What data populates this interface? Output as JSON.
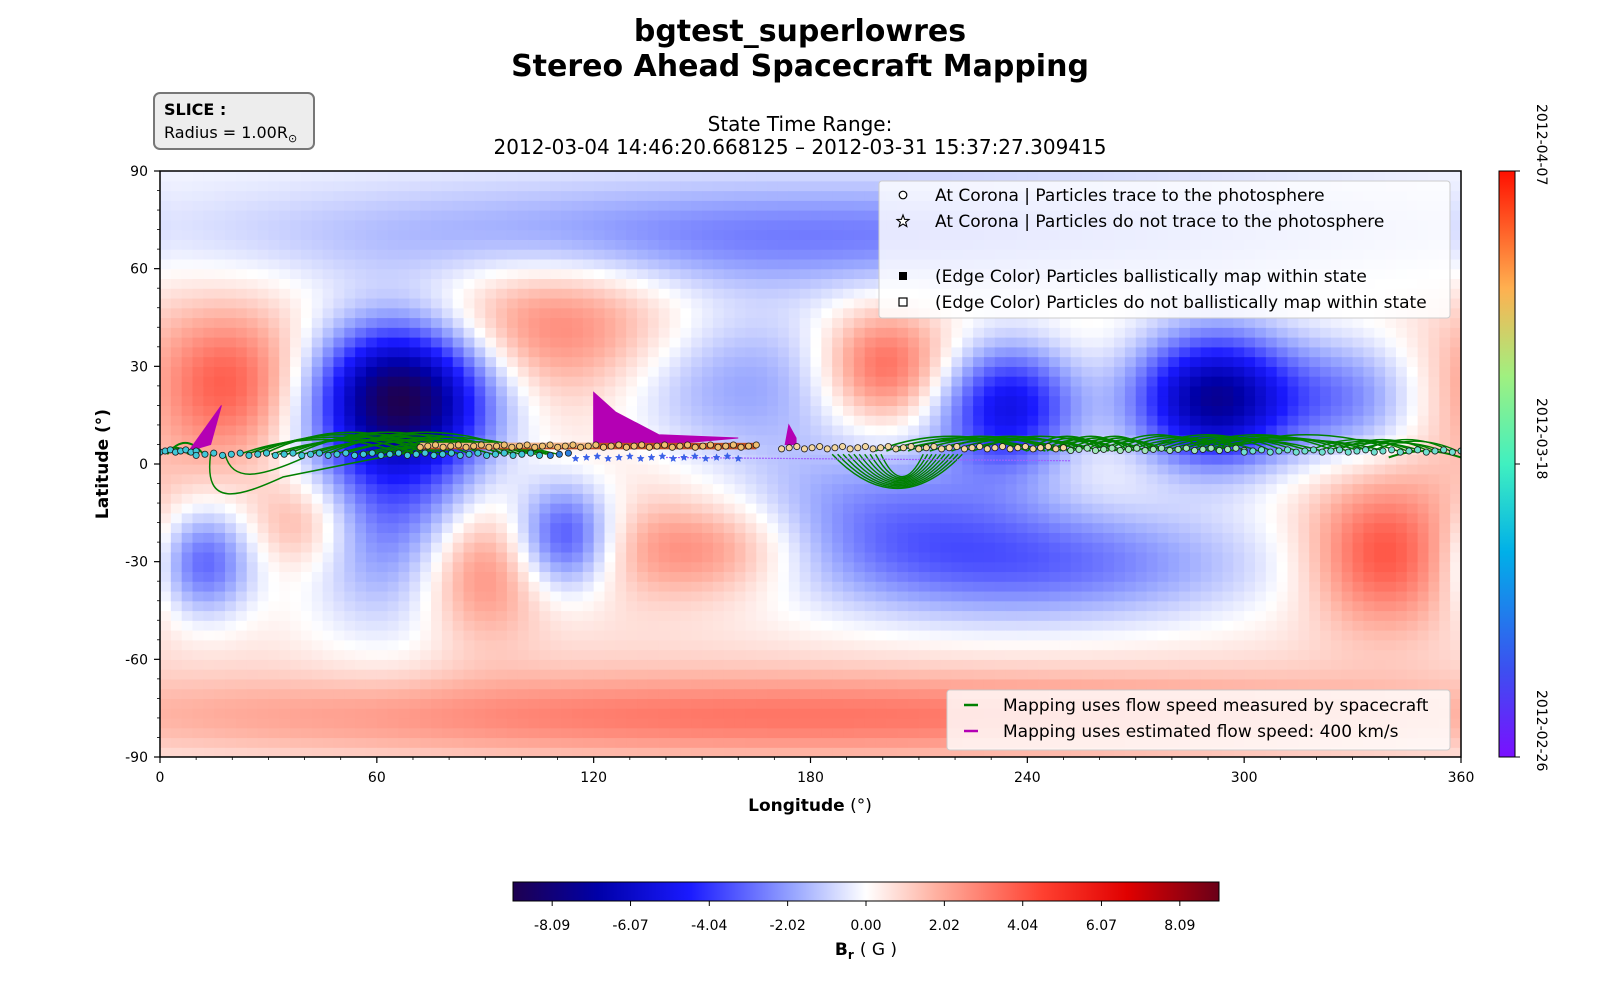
{
  "title": "bgtest_superlowres",
  "subtitle": "Stereo Ahead Spacecraft Mapping",
  "slice": {
    "heading": "SLICE :",
    "radius_prefix": "Radius = 1.00R",
    "radius_suffix": "⊙"
  },
  "state_time": {
    "label": "State Time Range:",
    "range": "2012-03-04 14:46:20.668125 – 2012-03-31 15:37:27.309415"
  },
  "colors": {
    "field_neg": "#1e0078",
    "field_pos": "#8b0016",
    "mapping_spacecraft": "#008000",
    "mapping_estimated": "#b400b4"
  },
  "chart_data": {
    "type": "heatmap",
    "xlabel": "Longitude",
    "xlabel_unit": "(°)",
    "ylabel": "Latitude (°)",
    "xlim": [
      0,
      360
    ],
    "ylim": [
      -90,
      90
    ],
    "x_ticks": [
      0,
      60,
      120,
      180,
      240,
      300,
      360
    ],
    "x_tick_labels": [
      "0",
      "60",
      "120",
      "180",
      "240",
      "300",
      "360"
    ],
    "y_ticks": [
      90,
      60,
      30,
      0,
      -30,
      -60,
      -90
    ],
    "y_tick_labels": [
      "90",
      "60",
      "30",
      "0",
      "-30",
      "-60",
      "-90"
    ],
    "grid": false,
    "field": {
      "name": "Br",
      "unit": "G",
      "background": 2.0,
      "blobs": [
        {
          "lon": 67,
          "lat": 22,
          "amp": -9.0,
          "sx": 18,
          "sy": 16
        },
        {
          "lon": 235,
          "lat": 18,
          "amp": -6.0,
          "sx": 14,
          "sy": 14
        },
        {
          "lon": 292,
          "lat": 20,
          "amp": -8.5,
          "sx": 17,
          "sy": 15
        },
        {
          "lon": 160,
          "lat": 25,
          "amp": -3.0,
          "sx": 28,
          "sy": 18
        },
        {
          "lon": 330,
          "lat": 20,
          "amp": -3.0,
          "sx": 14,
          "sy": 14
        },
        {
          "lon": 65,
          "lat": -15,
          "amp": -4.0,
          "sx": 20,
          "sy": 25
        },
        {
          "lon": 112,
          "lat": -22,
          "amp": -4.5,
          "sx": 10,
          "sy": 12
        },
        {
          "lon": 12,
          "lat": -30,
          "amp": -4.0,
          "sx": 10,
          "sy": 12
        },
        {
          "lon": 240,
          "lat": -30,
          "amp": -4.0,
          "sx": 50,
          "sy": 14
        },
        {
          "lon": 185,
          "lat": 70,
          "amp": -3.0,
          "sx": 120,
          "sy": 12
        },
        {
          "lon": 200,
          "lat": -10,
          "amp": -2.5,
          "sx": 30,
          "sy": 15
        },
        {
          "lon": 20,
          "lat": 25,
          "amp": 3.0,
          "sx": 15,
          "sy": 15
        },
        {
          "lon": 200,
          "lat": 30,
          "amp": 3.5,
          "sx": 12,
          "sy": 12
        },
        {
          "lon": 338,
          "lat": -28,
          "amp": 3.5,
          "sx": 14,
          "sy": 15
        },
        {
          "lon": 88,
          "lat": -32,
          "amp": 3.0,
          "sx": 12,
          "sy": 15
        },
        {
          "lon": 150,
          "lat": -26,
          "amp": 2.5,
          "sx": 20,
          "sy": 10
        },
        {
          "lon": 40,
          "lat": -18,
          "amp": 2.0,
          "sx": 10,
          "sy": 10
        },
        {
          "lon": 110,
          "lat": 42,
          "amp": 2.5,
          "sx": 25,
          "sy": 15
        },
        {
          "lon": 180,
          "lat": -78,
          "amp": 3.0,
          "sx": 150,
          "sy": 10
        }
      ]
    },
    "colorbar_field": {
      "label_main": "B",
      "label_sub": "r",
      "label_unit": "( G )",
      "range": [
        -9.1,
        9.1
      ],
      "ticks": [
        -8.09,
        -6.07,
        -4.04,
        -2.02,
        0.0,
        2.02,
        4.04,
        6.07,
        8.09
      ],
      "tick_labels": [
        "-8.09",
        "-6.07",
        "-4.04",
        "-2.02",
        "0.00",
        "2.02",
        "4.04",
        "6.07",
        "8.09"
      ],
      "colormap": "seismic-like"
    },
    "colorbar_time": {
      "ticks": [
        "2012-02-26",
        "2012-03-18",
        "2012-04-07"
      ],
      "colormap": "rainbow"
    },
    "markers": [
      {
        "lon_range": [
          0,
          10
        ],
        "lat": 4,
        "symbol": "circle",
        "color": "#40c8d8",
        "count": 8
      },
      {
        "lon_range": [
          10,
          105
        ],
        "lat": 3,
        "symbol": "circle",
        "color": "#40c8d8",
        "count": 40
      },
      {
        "lon_range": [
          108,
          113
        ],
        "lat": 3,
        "symbol": "circle",
        "color": "#2a80e0",
        "count": 3
      },
      {
        "lon_range": [
          115,
          160
        ],
        "lat": 2,
        "symbol": "star",
        "color": "#3a60e8",
        "count": 16
      },
      {
        "lon_range": [
          72,
          165
        ],
        "lat": 5.5,
        "symbol": "circle",
        "color": "#f0c070",
        "count": 45
      },
      {
        "lon_range": [
          172,
          250
        ],
        "lat": 5,
        "symbol": "circle",
        "color": "#f4d8a0",
        "count": 38
      },
      {
        "lon_range": [
          252,
          300
        ],
        "lat": 4.5,
        "symbol": "circle",
        "color": "#a0e8b8",
        "count": 22
      },
      {
        "lon_range": [
          300,
          360
        ],
        "lat": 4,
        "symbol": "circle",
        "color": "#70e0d0",
        "count": 26
      }
    ],
    "legend_markers": {
      "placement": "upper right",
      "entries": [
        {
          "symbol": "open-circle",
          "label": "At Corona | Particles trace to the photosphere"
        },
        {
          "symbol": "open-star",
          "label": "At Corona | Particles do not trace to the photosphere"
        },
        {
          "symbol": "filled-square",
          "label": "(Edge Color) Particles ballistically map within state"
        },
        {
          "symbol": "open-square",
          "label": "(Edge Color) Particles do not ballistically map within state"
        }
      ]
    },
    "legend_lines": {
      "placement": "lower right",
      "entries": [
        {
          "color": "#008000",
          "label": "Mapping uses flow speed measured by spacecraft"
        },
        {
          "color": "#b400b4",
          "label": "Mapping uses estimated flow speed: 400 km/s"
        }
      ]
    }
  }
}
